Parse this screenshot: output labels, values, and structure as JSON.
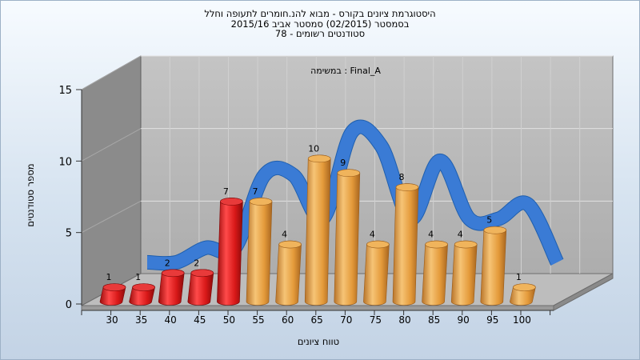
{
  "title_lines": [
    "היסטוגרמת ציונים בקורס - מבוא להנ.חומרים לתעופה וחלל",
    "בסמסטר  (02/2015)  סמסטר אביב 2015/16",
    "סטודנטים רשומים - 78"
  ],
  "chart_data": {
    "type": "bar",
    "subtitle": "במשימה : Final_A",
    "xlabel": "טווח ציונים",
    "ylabel": "מספר סטודנטים",
    "categories": [
      "30",
      "35",
      "40",
      "45",
      "50",
      "55",
      "60",
      "65",
      "70",
      "75",
      "80",
      "85",
      "90",
      "95",
      "100"
    ],
    "values": [
      1,
      1,
      2,
      2,
      7,
      7,
      4,
      10,
      9,
      4,
      8,
      4,
      4,
      5,
      1
    ],
    "bar_colors": [
      "red",
      "red",
      "red",
      "red",
      "red",
      "orange",
      "orange",
      "orange",
      "orange",
      "orange",
      "orange",
      "orange",
      "orange",
      "orange",
      "orange"
    ],
    "y_ticks": [
      0,
      5,
      10,
      15
    ],
    "ylim": [
      0,
      15
    ],
    "trend": "smoothed blue ribbon through bar tops",
    "colors": {
      "red": "#d81818",
      "orange": "#eaa64a",
      "ribbon": "#3a7bd5",
      "wall": "#8a8a8a",
      "plane": "#bdbdbd"
    }
  }
}
